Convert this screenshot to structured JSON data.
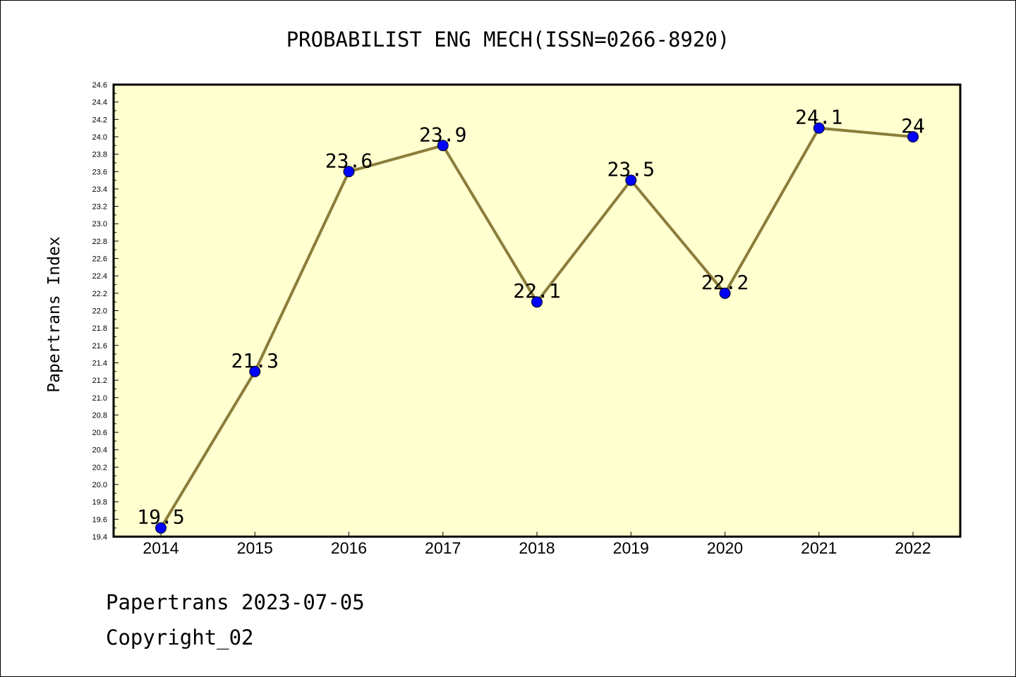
{
  "chart_data": {
    "type": "line",
    "title": "PROBABILIST ENG MECH(ISSN=0266-8920)",
    "ylabel": "Papertrans Index",
    "xlabel": "",
    "categories": [
      "2014",
      "2015",
      "2016",
      "2017",
      "2018",
      "2019",
      "2020",
      "2021",
      "2022"
    ],
    "series": [
      {
        "values": [
          19.5,
          21.3,
          23.6,
          23.9,
          22.1,
          23.5,
          22.2,
          24.1,
          24.0
        ]
      }
    ],
    "data_labels": [
      "19.5",
      "21.3",
      "23.6",
      "23.9",
      "22.1",
      "23.5",
      "22.2",
      "24.1",
      "24"
    ],
    "ylim": [
      19.4,
      24.6
    ],
    "yticks": [
      "19.4",
      "19.6",
      "19.8",
      "20.0",
      "20.2",
      "20.4",
      "20.6",
      "20.8",
      "21.0",
      "21.2",
      "21.4",
      "21.6",
      "21.8",
      "22.0",
      "22.2",
      "22.4",
      "22.6",
      "22.8",
      "23.0",
      "23.2",
      "23.4",
      "23.6",
      "23.8",
      "24.0",
      "24.2",
      "24.4",
      "24.6"
    ],
    "grid": false,
    "colors": {
      "plot_background": "#ffffd0",
      "line": "#8b7d3a",
      "marker": "#0000ff"
    }
  },
  "footer": {
    "line1": "Papertrans 2023-07-05",
    "line2": "Copyright_02"
  }
}
